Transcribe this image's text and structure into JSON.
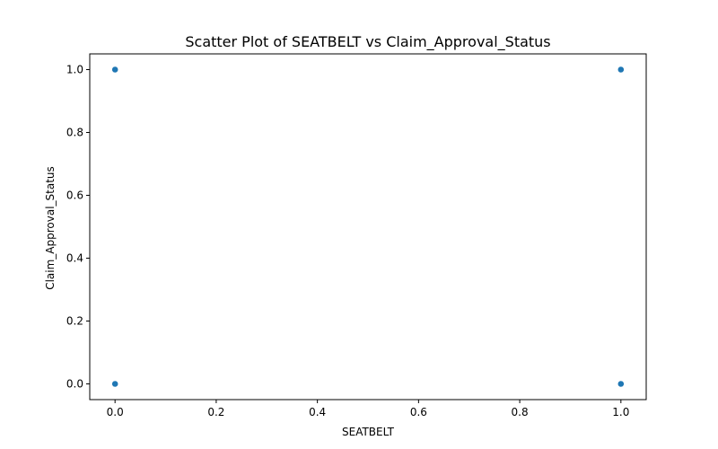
{
  "chart_data": {
    "type": "scatter",
    "title": "Scatter Plot of SEATBELT vs Claim_Approval_Status",
    "xlabel": "SEATBELT",
    "ylabel": "Claim_Approval_Status",
    "xlim": [
      -0.05,
      1.05
    ],
    "ylim": [
      -0.05,
      1.05
    ],
    "xticks": [
      0.0,
      0.2,
      0.4,
      0.6,
      0.8,
      1.0
    ],
    "yticks": [
      0.0,
      0.2,
      0.4,
      0.6,
      0.8,
      1.0
    ],
    "xtick_labels": [
      "0.0",
      "0.2",
      "0.4",
      "0.6",
      "0.8",
      "1.0"
    ],
    "ytick_labels": [
      "0.0",
      "0.2",
      "0.4",
      "0.6",
      "0.8",
      "1.0"
    ],
    "grid": false,
    "legend": "none",
    "marker_color": "#1f77b4",
    "points": [
      {
        "x": 0.0,
        "y": 1.0
      },
      {
        "x": 0.0,
        "y": 0.0
      },
      {
        "x": 1.0,
        "y": 1.0
      },
      {
        "x": 1.0,
        "y": 0.0
      }
    ]
  }
}
